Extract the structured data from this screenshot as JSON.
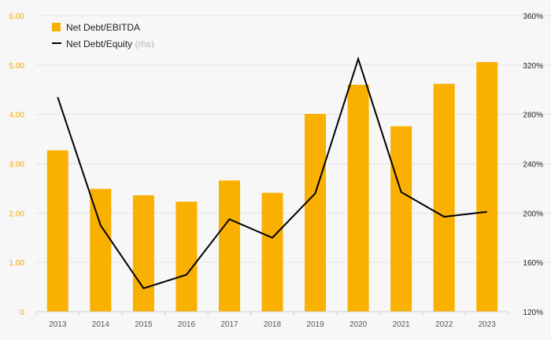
{
  "chart_data": {
    "type": "bar",
    "categories": [
      "2013",
      "2014",
      "2015",
      "2016",
      "2017",
      "2018",
      "2019",
      "2020",
      "2021",
      "2022",
      "2023"
    ],
    "series": [
      {
        "name": "Net Debt/EBITDA",
        "type": "bar",
        "axis": "left",
        "color": "#f9b000",
        "values": [
          3.27,
          2.49,
          2.36,
          2.23,
          2.66,
          2.41,
          4.01,
          4.6,
          3.76,
          4.62,
          5.06
        ]
      },
      {
        "name": "Net Debt/Equity",
        "name_suffix": "(rhs)",
        "type": "line",
        "axis": "right",
        "color": "#000000",
        "values": [
          294,
          190,
          139,
          150,
          195,
          180,
          216,
          325,
          217,
          197,
          201
        ]
      }
    ],
    "y_left": {
      "ylim": [
        0,
        6
      ],
      "ticks": [
        0,
        1,
        2,
        3,
        4,
        5,
        6
      ],
      "tick_labels": [
        "0",
        "1.00",
        "2.00",
        "3.00",
        "4.00",
        "5.00",
        "6.00"
      ],
      "color": "#f5a800"
    },
    "y_right": {
      "ylim": [
        120,
        360
      ],
      "ticks": [
        120,
        160,
        200,
        240,
        280,
        320,
        360
      ],
      "tick_labels": [
        "120%",
        "160%",
        "200%",
        "240%",
        "280%",
        "320%",
        "360%"
      ],
      "color": "#222222"
    },
    "grid": true,
    "legend_position": "top-left",
    "background": "#f7f7f7",
    "grid_color": "#e4e4e4"
  }
}
